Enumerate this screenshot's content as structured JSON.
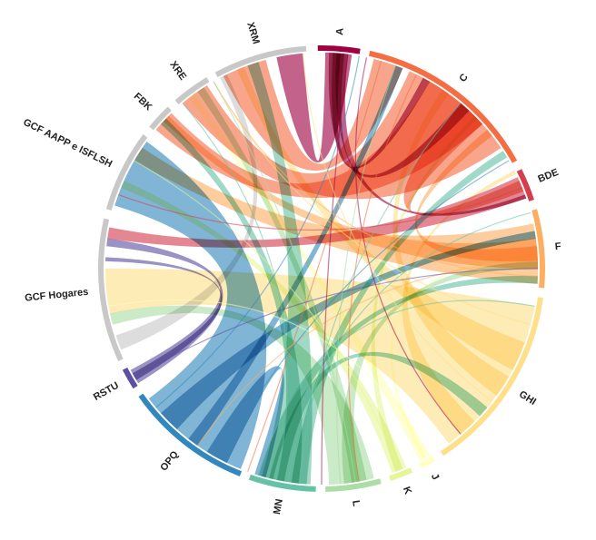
{
  "diagram": {
    "type": "chord",
    "groups": [
      {
        "id": "A",
        "label": "A",
        "color": "#9e0142"
      },
      {
        "id": "C",
        "label": "C",
        "color": "#f46d43"
      },
      {
        "id": "BDE",
        "label": "BDE",
        "color": "#d53e4f"
      },
      {
        "id": "F",
        "label": "F",
        "color": "#fdae61"
      },
      {
        "id": "GHI",
        "label": "GHI",
        "color": "#fee08b"
      },
      {
        "id": "J",
        "label": "J",
        "color": "#ffffbf"
      },
      {
        "id": "K",
        "label": "K",
        "color": "#e6f598"
      },
      {
        "id": "L",
        "label": "L",
        "color": "#abdda4"
      },
      {
        "id": "MN",
        "label": "MN",
        "color": "#66c2a5"
      },
      {
        "id": "OPQ",
        "label": "OPQ",
        "color": "#3288bd"
      },
      {
        "id": "RSTU",
        "label": "RSTU",
        "color": "#5e4fa2"
      },
      {
        "id": "GCF Hogares",
        "label": "GCF Hogares",
        "color": "#c8c8c8"
      },
      {
        "id": "GCF AAPP e ISFLSH",
        "label": "GCF AAPP e ISFLSH",
        "color": "#c8c8c8"
      },
      {
        "id": "FBK",
        "label": "FBK",
        "color": "#c8c8c8"
      },
      {
        "id": "XRE",
        "label": "XRE",
        "color": "#c8c8c8"
      },
      {
        "id": "XRM",
        "label": "XRM",
        "color": "#c8c8c8"
      }
    ]
  }
}
